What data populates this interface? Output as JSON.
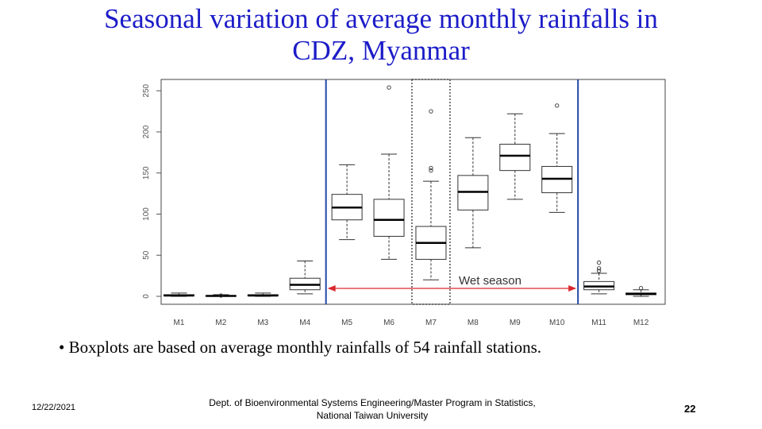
{
  "slide": {
    "title_line1": "Seasonal variation of average monthly rainfalls in",
    "title_line2": "CDZ, Myanmar",
    "bullet": "• Boxplots are based on average monthly rainfalls of 54 rainfall stations.",
    "footer": {
      "date": "12/22/2021",
      "org_line1": "Dept. of Bioenvironmental Systems Engineering/Master Program in Statistics,",
      "org_line2": "National Taiwan University",
      "page": "22"
    }
  },
  "chart_data": {
    "type": "boxplot",
    "title": "",
    "xlabel": "",
    "ylabel": "",
    "ylim": [
      0,
      250
    ],
    "yticks": [
      0,
      50,
      100,
      150,
      200,
      250
    ],
    "categories": [
      "M1",
      "M2",
      "M3",
      "M4",
      "M5",
      "M6",
      "M7",
      "M8",
      "M9",
      "M10",
      "M11",
      "M12"
    ],
    "boxes": [
      {
        "month": "M1",
        "min": 0,
        "q1": 0.5,
        "median": 1,
        "q3": 2,
        "max": 4,
        "outliers": []
      },
      {
        "month": "M2",
        "min": 0,
        "q1": 0,
        "median": 0.5,
        "q3": 1,
        "max": 2,
        "outliers": [
          1
        ]
      },
      {
        "month": "M3",
        "min": 0,
        "q1": 0.5,
        "median": 1,
        "q3": 2,
        "max": 4,
        "outliers": []
      },
      {
        "month": "M4",
        "min": 3,
        "q1": 8,
        "median": 14,
        "q3": 22,
        "max": 43,
        "outliers": []
      },
      {
        "month": "M5",
        "min": 69,
        "q1": 93,
        "median": 108,
        "q3": 124,
        "max": 160,
        "outliers": []
      },
      {
        "month": "M6",
        "min": 45,
        "q1": 73,
        "median": 93,
        "q3": 118,
        "max": 173,
        "outliers": [
          254
        ]
      },
      {
        "month": "M7",
        "min": 20,
        "q1": 45,
        "median": 65,
        "q3": 85,
        "max": 140,
        "outliers": [
          153,
          156,
          225
        ]
      },
      {
        "month": "M8",
        "min": 59,
        "q1": 105,
        "median": 127,
        "q3": 147,
        "max": 193,
        "outliers": []
      },
      {
        "month": "M9",
        "min": 118,
        "q1": 153,
        "median": 171,
        "q3": 185,
        "max": 222,
        "outliers": []
      },
      {
        "month": "M10",
        "min": 102,
        "q1": 126,
        "median": 143,
        "q3": 158,
        "max": 198,
        "outliers": [
          232
        ]
      },
      {
        "month": "M11",
        "min": 3,
        "q1": 8,
        "median": 12,
        "q3": 18,
        "max": 28,
        "outliers": [
          31,
          34,
          41
        ]
      },
      {
        "month": "M12",
        "min": 0,
        "q1": 2,
        "median": 3,
        "q3": 4,
        "max": 8,
        "outliers": [
          10
        ]
      }
    ],
    "annotations": {
      "wet_season_label": "Wet season",
      "wet_season_start": "M5",
      "wet_season_end": "M10",
      "highlighted_month": "M7"
    },
    "colors": {
      "boundary": "#2346a8",
      "arrow": "#d9272e",
      "box_fill": "#ffffff",
      "stroke": "#333333"
    }
  }
}
